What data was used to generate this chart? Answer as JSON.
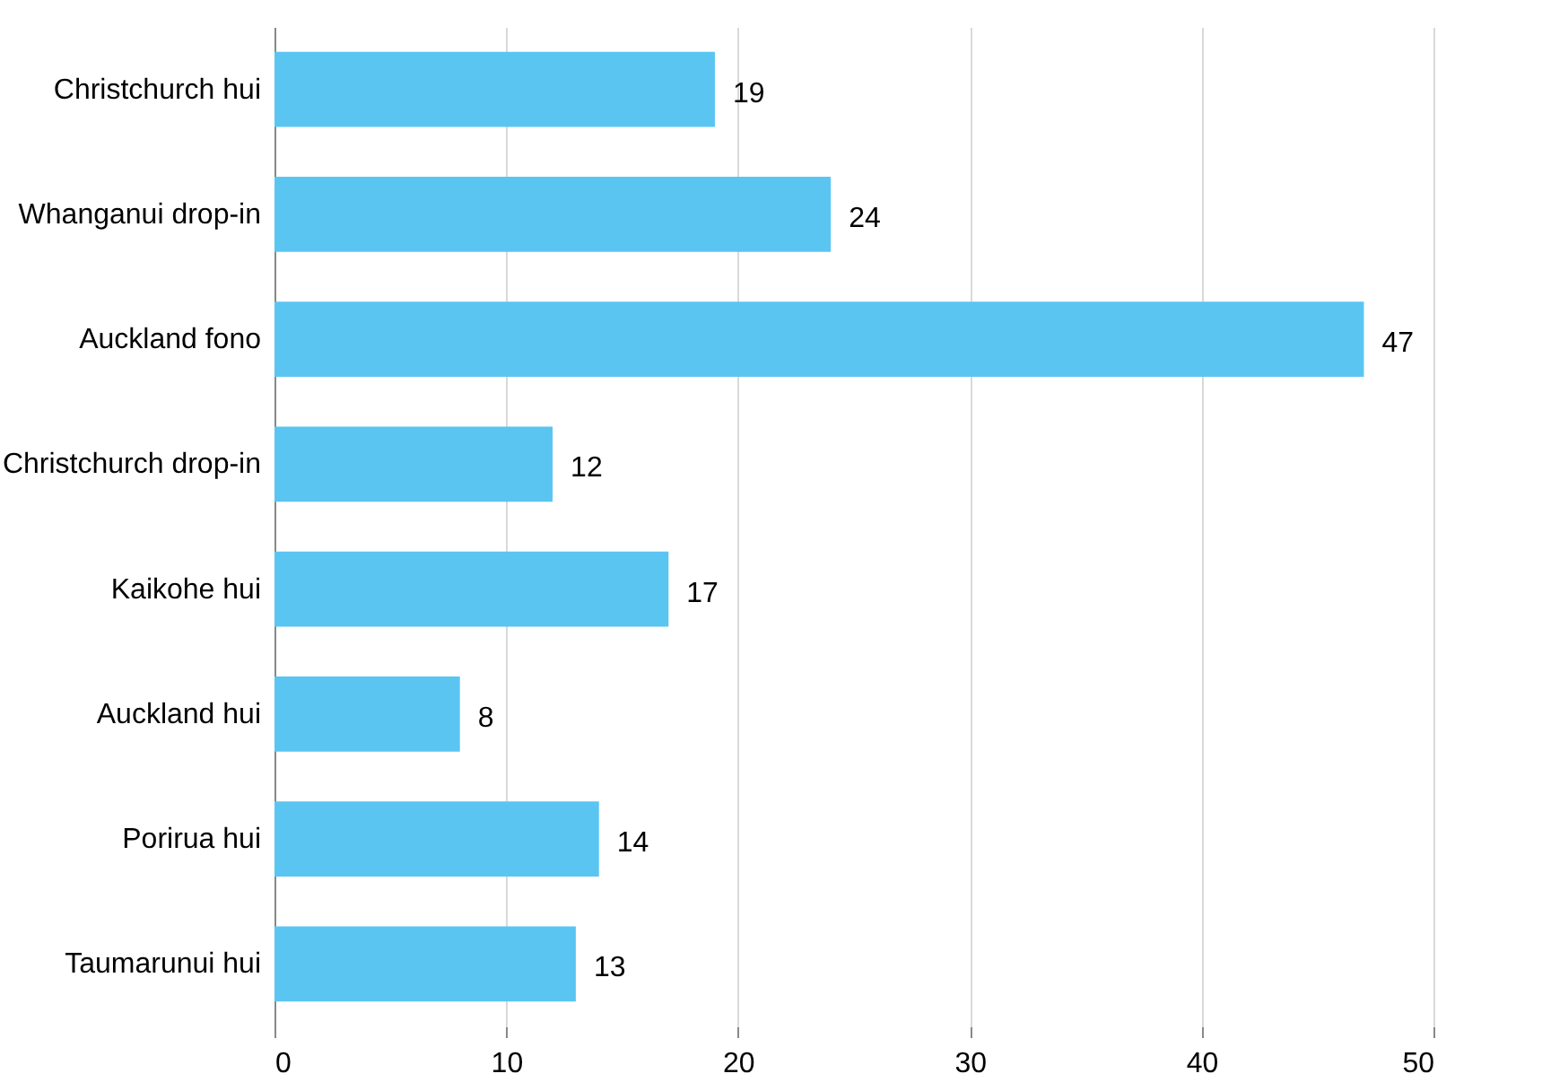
{
  "chart_data": {
    "type": "bar",
    "orientation": "horizontal",
    "categories": [
      "Christchurch hui",
      "Whanganui drop-in",
      "Auckland fono",
      "Christchurch drop-in",
      "Kaikohe hui",
      "Auckland hui",
      "Porirua hui",
      "Taumarunui hui"
    ],
    "values": [
      19,
      24,
      47,
      12,
      17,
      8,
      14,
      13
    ],
    "color": "#5bc5f2",
    "xlim": [
      0,
      50
    ],
    "xticks": [
      0,
      10,
      20,
      30,
      40,
      50
    ],
    "grid": "x",
    "data_labels": true
  }
}
